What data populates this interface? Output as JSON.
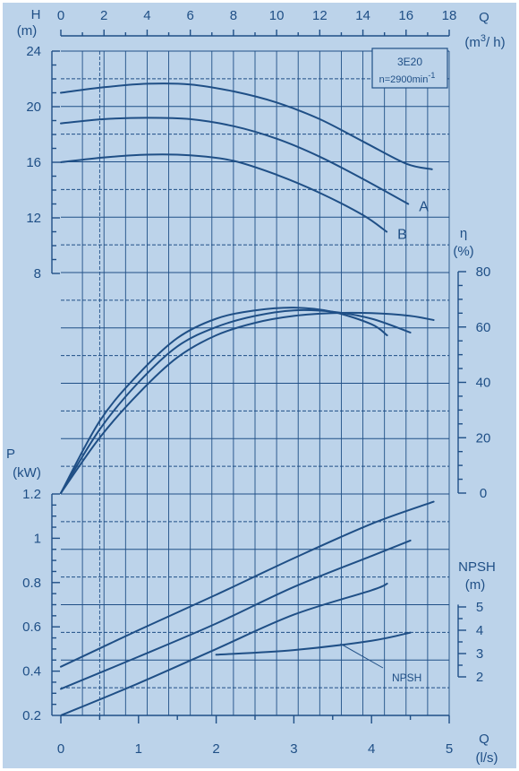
{
  "chart_data": {
    "type": "line",
    "model_label": "3E20",
    "speed_label": "n=2900min",
    "speed_exp": "-1",
    "axes": {
      "q_top": {
        "name": "Q",
        "unit": "(m3/h)",
        "range": [
          0,
          18
        ],
        "ticks": [
          0,
          2,
          4,
          6,
          8,
          10,
          12,
          14,
          16,
          18
        ]
      },
      "q_bottom": {
        "name": "Q",
        "unit": "(l/s)",
        "range": [
          0,
          5
        ],
        "ticks": [
          0,
          1,
          2,
          3,
          4,
          5
        ]
      },
      "head": {
        "name": "H",
        "unit": "(m)",
        "range": [
          8,
          24
        ],
        "ticks": [
          8,
          12,
          16,
          20,
          24
        ]
      },
      "efficiency": {
        "name": "η",
        "unit": "(%)",
        "range": [
          0,
          80
        ],
        "ticks": [
          0,
          20,
          40,
          60,
          80
        ]
      },
      "power": {
        "name": "P",
        "unit": "(kW)",
        "range": [
          0.2,
          1.2
        ],
        "ticks": [
          0.2,
          0.4,
          0.6,
          0.8,
          1,
          1.2
        ]
      },
      "npsh": {
        "name": "NPSH",
        "unit": "(m)",
        "range": [
          2,
          5
        ],
        "ticks": [
          2,
          3,
          4,
          5
        ]
      }
    },
    "head_curves": [
      {
        "name": "",
        "label_x": 0,
        "points": [
          [
            0,
            21
          ],
          [
            2,
            21.4
          ],
          [
            4,
            21.65
          ],
          [
            6,
            21.6
          ],
          [
            8,
            21.1
          ],
          [
            10,
            20.3
          ],
          [
            12,
            19.1
          ],
          [
            14,
            17.5
          ],
          [
            16,
            15.9
          ],
          [
            17.2,
            15.5
          ]
        ]
      },
      {
        "name": "A",
        "label_x": 16.1,
        "points": [
          [
            0,
            18.8
          ],
          [
            2,
            19.1
          ],
          [
            4,
            19.2
          ],
          [
            6,
            19.1
          ],
          [
            8,
            18.6
          ],
          [
            10,
            17.7
          ],
          [
            12,
            16.4
          ],
          [
            14,
            14.8
          ],
          [
            16.1,
            13
          ]
        ]
      },
      {
        "name": "B",
        "label_x": 15.1,
        "points": [
          [
            0,
            16
          ],
          [
            2,
            16.35
          ],
          [
            4,
            16.55
          ],
          [
            6,
            16.5
          ],
          [
            8,
            16.1
          ],
          [
            10,
            15.1
          ],
          [
            12,
            13.8
          ],
          [
            14,
            12.2
          ],
          [
            15.1,
            11
          ]
        ]
      }
    ],
    "efficiency_curves": [
      {
        "name": "",
        "points": [
          [
            0,
            0
          ],
          [
            0.5,
            26
          ],
          [
            1,
            43
          ],
          [
            1.5,
            56
          ],
          [
            2,
            63
          ],
          [
            2.5,
            66
          ],
          [
            3,
            67
          ],
          [
            3.5,
            65.5
          ],
          [
            4,
            61
          ],
          [
            4.2,
            57
          ]
        ]
      },
      {
        "name": "",
        "points": [
          [
            0,
            0
          ],
          [
            0.5,
            23
          ],
          [
            1,
            40
          ],
          [
            1.5,
            53
          ],
          [
            2,
            60
          ],
          [
            2.5,
            64
          ],
          [
            3,
            66
          ],
          [
            3.5,
            65.5
          ],
          [
            4,
            63
          ],
          [
            4.5,
            58
          ]
        ]
      },
      {
        "name": "",
        "points": [
          [
            0,
            0
          ],
          [
            0.5,
            20
          ],
          [
            1,
            36
          ],
          [
            1.5,
            49
          ],
          [
            2,
            57
          ],
          [
            2.5,
            61.5
          ],
          [
            3,
            64
          ],
          [
            3.5,
            65
          ],
          [
            4,
            65
          ],
          [
            4.5,
            64
          ],
          [
            4.8,
            62.5
          ]
        ]
      }
    ],
    "power_curves": [
      {
        "name": "",
        "points": [
          [
            0,
            0.42
          ],
          [
            1,
            0.585
          ],
          [
            2,
            0.745
          ],
          [
            3,
            0.91
          ],
          [
            4,
            1.065
          ],
          [
            4.8,
            1.165
          ]
        ]
      },
      {
        "name": "",
        "points": [
          [
            0,
            0.32
          ],
          [
            1,
            0.465
          ],
          [
            2,
            0.615
          ],
          [
            3,
            0.78
          ],
          [
            4,
            0.92
          ],
          [
            4.5,
            0.99
          ]
        ]
      },
      {
        "name": "",
        "points": [
          [
            0,
            0.2
          ],
          [
            1,
            0.345
          ],
          [
            2,
            0.5
          ],
          [
            3,
            0.655
          ],
          [
            4,
            0.765
          ],
          [
            4.2,
            0.795
          ]
        ]
      }
    ],
    "npsh_curve": {
      "label": "NPSH",
      "points": [
        [
          2,
          2.95
        ],
        [
          3,
          3.15
        ],
        [
          4,
          3.55
        ],
        [
          4.5,
          3.9
        ]
      ]
    }
  }
}
